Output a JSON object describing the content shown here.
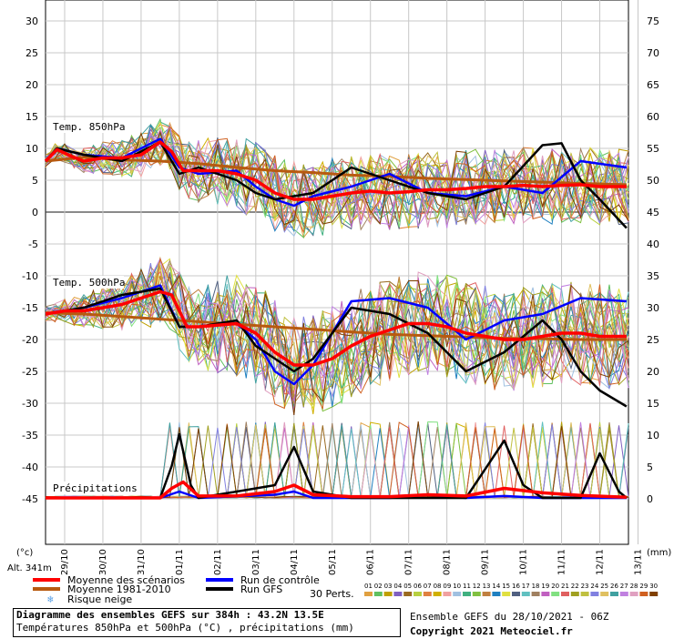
{
  "chart_data": {
    "type": "line",
    "left_axis_ticks": [
      "30",
      "25",
      "20",
      "15",
      "10",
      "5",
      "0",
      "-5",
      "-10",
      "-15",
      "-20",
      "-25",
      "-30",
      "-35",
      "-40",
      "-45"
    ],
    "right_axis_ticks": [
      "75",
      "70",
      "65",
      "60",
      "55",
      "50",
      "45",
      "40",
      "35",
      "30",
      "25",
      "20",
      "15",
      "10",
      "5",
      "0"
    ],
    "left_unit": "(°c)",
    "right_unit": "(mm)",
    "altitude": "Alt. 341m",
    "dates": [
      "29/10",
      "30/10",
      "31/10",
      "01/11",
      "02/11",
      "03/11",
      "04/11",
      "05/11",
      "06/11",
      "07/11",
      "08/11",
      "09/11",
      "10/11",
      "11/11",
      "12/11",
      "13/11"
    ],
    "panel_labels": {
      "t850": "Temp. 850hPa",
      "t500": "Temp. 500hPa",
      "precip": "Précipitations"
    },
    "series": [
      {
        "name": "Moyenne des scénarios",
        "panel": "Temp. 850hPa",
        "color": "#ff0000",
        "points": [
          [
            0,
            8
          ],
          [
            0.3,
            9.8
          ],
          [
            0.7,
            8.7
          ],
          [
            1,
            8
          ],
          [
            1.5,
            8.5
          ],
          [
            2,
            8.5
          ],
          [
            2.5,
            9
          ],
          [
            3,
            11
          ],
          [
            3.3,
            9.5
          ],
          [
            3.6,
            6.5
          ],
          [
            4,
            6.5
          ],
          [
            4.5,
            6.5
          ],
          [
            5,
            6
          ],
          [
            5.5,
            5
          ],
          [
            6,
            3
          ],
          [
            6.5,
            2
          ],
          [
            7,
            2
          ],
          [
            7.5,
            2.5
          ],
          [
            8,
            3
          ],
          [
            8.5,
            3.3
          ],
          [
            9,
            3
          ],
          [
            9.5,
            3.2
          ],
          [
            10,
            3.5
          ],
          [
            10.5,
            3.5
          ],
          [
            11,
            3.7
          ],
          [
            11.5,
            4
          ],
          [
            12,
            4
          ],
          [
            12.5,
            4.2
          ],
          [
            13,
            4
          ],
          [
            13.5,
            4.2
          ],
          [
            14,
            4.3
          ],
          [
            14.5,
            4
          ],
          [
            15.2,
            4
          ]
        ]
      },
      {
        "name": "Moyenne 1981-2010",
        "panel": "Temp. 850hPa",
        "color": "#b85a10",
        "points": [
          [
            0,
            8
          ],
          [
            1,
            8.6
          ],
          [
            2,
            8.2
          ],
          [
            3,
            8
          ],
          [
            4,
            7.6
          ],
          [
            5,
            7
          ],
          [
            6,
            6.5
          ],
          [
            7,
            6.2
          ],
          [
            8,
            5.8
          ],
          [
            9,
            5.6
          ],
          [
            10,
            5.3
          ],
          [
            11,
            5.1
          ],
          [
            12,
            4.9
          ],
          [
            13,
            4.7
          ],
          [
            14,
            4.5
          ],
          [
            15.2,
            4.3
          ]
        ]
      },
      {
        "name": "Run de contrôle",
        "panel": "Temp. 850hPa",
        "color": "#0000ff",
        "points": [
          [
            0,
            8
          ],
          [
            0.3,
            10
          ],
          [
            1,
            9
          ],
          [
            2,
            8.5
          ],
          [
            3,
            11.5
          ],
          [
            3.5,
            7
          ],
          [
            4,
            6
          ],
          [
            5,
            6.5
          ],
          [
            5.5,
            4
          ],
          [
            6,
            2
          ],
          [
            6.5,
            1
          ],
          [
            7,
            2.5
          ],
          [
            8,
            4
          ],
          [
            9,
            6
          ],
          [
            10,
            3
          ],
          [
            11,
            2.5
          ],
          [
            12,
            4
          ],
          [
            13,
            3
          ],
          [
            14,
            8
          ],
          [
            15.2,
            7
          ]
        ]
      },
      {
        "name": "Run GFS",
        "panel": "Temp. 850hPa",
        "color": "#000000",
        "points": [
          [
            0,
            8
          ],
          [
            0.3,
            10
          ],
          [
            1,
            9
          ],
          [
            2,
            8
          ],
          [
            3,
            11
          ],
          [
            3.5,
            6
          ],
          [
            4,
            7
          ],
          [
            5,
            5
          ],
          [
            5.5,
            3
          ],
          [
            6,
            2
          ],
          [
            7,
            3
          ],
          [
            8,
            7
          ],
          [
            9,
            5
          ],
          [
            10,
            3
          ],
          [
            11,
            2
          ],
          [
            12,
            4
          ],
          [
            13,
            10.5
          ],
          [
            13.5,
            10.8
          ],
          [
            14,
            5
          ],
          [
            14.5,
            2
          ],
          [
            15.2,
            -2.5
          ]
        ]
      },
      {
        "name": "Moyenne des scénarios",
        "panel": "Temp. 500hPa",
        "color": "#ff0000",
        "points": [
          [
            0,
            -16
          ],
          [
            0.5,
            -15.5
          ],
          [
            1,
            -15.5
          ],
          [
            2,
            -14.5
          ],
          [
            3,
            -12.5
          ],
          [
            3.3,
            -13
          ],
          [
            3.7,
            -18
          ],
          [
            4,
            -18
          ],
          [
            5,
            -17.5
          ],
          [
            5.5,
            -19
          ],
          [
            6,
            -22
          ],
          [
            6.5,
            -24
          ],
          [
            7,
            -24
          ],
          [
            7.5,
            -23
          ],
          [
            8,
            -21
          ],
          [
            8.5,
            -19.5
          ],
          [
            9,
            -18.5
          ],
          [
            9.5,
            -17.5
          ],
          [
            10,
            -17.5
          ],
          [
            10.5,
            -18
          ],
          [
            11,
            -19
          ],
          [
            11.5,
            -19.5
          ],
          [
            12,
            -20
          ],
          [
            12.5,
            -20
          ],
          [
            13,
            -19.5
          ],
          [
            13.5,
            -19
          ],
          [
            14,
            -19
          ],
          [
            14.5,
            -19.5
          ],
          [
            15.2,
            -19.5
          ]
        ]
      },
      {
        "name": "Moyenne 1981-2010",
        "panel": "Temp. 500hPa",
        "color": "#b85a10",
        "points": [
          [
            0,
            -15.8
          ],
          [
            1,
            -16
          ],
          [
            2,
            -16.4
          ],
          [
            3,
            -16.8
          ],
          [
            4,
            -17.2
          ],
          [
            5,
            -17.6
          ],
          [
            6,
            -18
          ],
          [
            7,
            -18.4
          ],
          [
            8,
            -18.8
          ],
          [
            9,
            -19.2
          ],
          [
            10,
            -19.4
          ],
          [
            11,
            -19.6
          ],
          [
            12,
            -19.8
          ],
          [
            13,
            -19.9
          ],
          [
            14,
            -20
          ],
          [
            15.2,
            -20
          ]
        ]
      },
      {
        "name": "Run de contrôle",
        "panel": "Temp. 500hPa",
        "color": "#0000ff",
        "points": [
          [
            0,
            -16
          ],
          [
            1,
            -15
          ],
          [
            2,
            -13.5
          ],
          [
            3,
            -11.5
          ],
          [
            3.5,
            -18
          ],
          [
            4,
            -18
          ],
          [
            5,
            -17.5
          ],
          [
            5.5,
            -20
          ],
          [
            6,
            -25
          ],
          [
            6.5,
            -27
          ],
          [
            7,
            -24
          ],
          [
            8,
            -14
          ],
          [
            9,
            -13.5
          ],
          [
            10,
            -15
          ],
          [
            11,
            -20
          ],
          [
            12,
            -17
          ],
          [
            13,
            -16
          ],
          [
            14,
            -13.5
          ],
          [
            15.2,
            -14
          ]
        ]
      },
      {
        "name": "Run GFS",
        "panel": "Temp. 500hPa",
        "color": "#000000",
        "points": [
          [
            0,
            -16
          ],
          [
            1,
            -15
          ],
          [
            2,
            -13
          ],
          [
            3,
            -12
          ],
          [
            3.5,
            -18
          ],
          [
            4,
            -18
          ],
          [
            5,
            -17
          ],
          [
            5.5,
            -21
          ],
          [
            6,
            -23
          ],
          [
            6.5,
            -25
          ],
          [
            7,
            -23
          ],
          [
            8,
            -15
          ],
          [
            9,
            -16
          ],
          [
            10,
            -19
          ],
          [
            11,
            -25
          ],
          [
            12,
            -22
          ],
          [
            13,
            -17
          ],
          [
            13.5,
            -20
          ],
          [
            14,
            -25
          ],
          [
            14.5,
            -28
          ],
          [
            15.2,
            -30.5
          ]
        ]
      },
      {
        "name": "Moyenne des scénarios",
        "panel": "Précipitations",
        "color": "#ff0000",
        "points": [
          [
            0,
            0
          ],
          [
            3,
            0
          ],
          [
            3.3,
            1.5
          ],
          [
            3.6,
            2.5
          ],
          [
            4,
            0.3
          ],
          [
            5,
            0.3
          ],
          [
            6,
            1
          ],
          [
            6.5,
            2
          ],
          [
            7,
            0.5
          ],
          [
            8,
            0.2
          ],
          [
            9,
            0.2
          ],
          [
            10,
            0.5
          ],
          [
            11,
            0.3
          ],
          [
            12,
            1.5
          ],
          [
            13,
            0.8
          ],
          [
            14,
            0.4
          ],
          [
            15.2,
            0.1
          ]
        ]
      },
      {
        "name": "Run de contrôle",
        "panel": "Précipitations",
        "color": "#0000ff",
        "points": [
          [
            0,
            0
          ],
          [
            3,
            0
          ],
          [
            3.5,
            1
          ],
          [
            4,
            0
          ],
          [
            6,
            0.5
          ],
          [
            6.5,
            1
          ],
          [
            7,
            0
          ],
          [
            9,
            0
          ],
          [
            10,
            0.5
          ],
          [
            11,
            0
          ],
          [
            12,
            0.3
          ],
          [
            13,
            0
          ],
          [
            15.2,
            0
          ]
        ]
      },
      {
        "name": "Run GFS",
        "panel": "Précipitations",
        "color": "#000000",
        "points": [
          [
            0,
            0
          ],
          [
            3,
            0
          ],
          [
            3.3,
            5
          ],
          [
            3.5,
            10
          ],
          [
            3.8,
            2
          ],
          [
            4,
            0
          ],
          [
            6,
            2
          ],
          [
            6.5,
            8
          ],
          [
            7,
            1
          ],
          [
            8,
            0
          ],
          [
            11,
            0
          ],
          [
            12,
            9
          ],
          [
            12.5,
            2
          ],
          [
            13,
            0
          ],
          [
            14,
            0
          ],
          [
            14.5,
            7
          ],
          [
            15,
            1
          ],
          [
            15.2,
            0
          ]
        ]
      }
    ],
    "legend": [
      {
        "label": "Moyenne des scénarios",
        "color": "#ff0000"
      },
      {
        "label": "Moyenne 1981-2010",
        "color": "#b85a10"
      },
      {
        "label": "Run de contrôle",
        "color": "#0000ff"
      },
      {
        "label": "Run GFS",
        "color": "#000000"
      },
      {
        "label": "Risque neige",
        "color": "#5aa0e6"
      }
    ],
    "perts_label": "30 Perts.",
    "perts": [
      "01",
      "02",
      "03",
      "04",
      "05",
      "06",
      "07",
      "08",
      "09",
      "10",
      "11",
      "12",
      "13",
      "14",
      "15",
      "16",
      "17",
      "18",
      "19",
      "20",
      "21",
      "22",
      "23",
      "24",
      "25",
      "26",
      "27",
      "28",
      "29",
      "30"
    ],
    "pert_colors": [
      "#e0a040",
      "#60c060",
      "#c0a000",
      "#8060c0",
      "#9a6a20",
      "#b8d040",
      "#e08040",
      "#d0b000",
      "#f0a0a0",
      "#a0c0e0",
      "#40b080",
      "#80c040",
      "#c08040",
      "#2080c0",
      "#e0e040",
      "#506080",
      "#60c0c0",
      "#a08060",
      "#c060c0",
      "#80e080",
      "#e06060",
      "#a0a020",
      "#c0c040",
      "#8080e0",
      "#e0c060",
      "#40a0a0",
      "#c080e0",
      "#e0a0c0",
      "#d06020",
      "#804000"
    ]
  },
  "footer": {
    "line1": "Diagramme des ensembles GEFS sur 384h : 43.2N 13.5E",
    "line2": "Températures 850hPa et 500hPa (°C) , précipitations (mm)"
  },
  "credit": {
    "line1": "Ensemble GEFS du 28/10/2021 - 06Z",
    "line2": "Copyright 2021 Meteociel.fr"
  }
}
